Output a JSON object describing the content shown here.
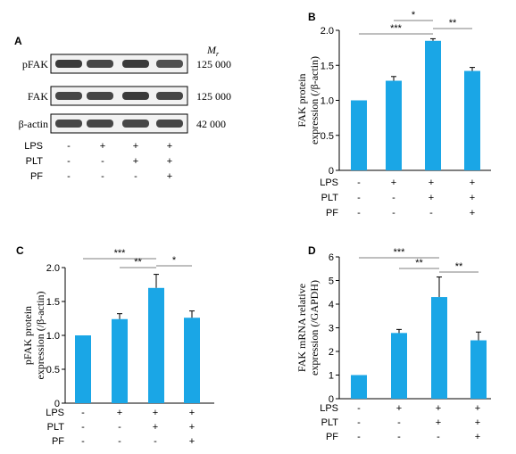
{
  "figure": {
    "panel_labels": [
      "A",
      "B",
      "C",
      "D"
    ],
    "condition_rows": [
      {
        "label": "LPS",
        "signs": [
          "-",
          "+",
          "+",
          "+"
        ]
      },
      {
        "label": "PLT",
        "signs": [
          "-",
          "-",
          "+",
          "+"
        ]
      },
      {
        "label": "PF",
        "signs": [
          "-",
          "-",
          "-",
          "+"
        ]
      }
    ]
  },
  "blot": {
    "mr_header": "M",
    "mr_subscript": "r",
    "rows": [
      {
        "label": "pFAK",
        "mr": "125 000",
        "intensity": [
          0.85,
          0.8,
          0.85,
          0.75
        ]
      },
      {
        "label": "FAK",
        "mr": "125 000",
        "intensity": [
          0.8,
          0.8,
          0.85,
          0.8
        ]
      },
      {
        "label": "β-actin",
        "mr": "42 000",
        "intensity": [
          0.8,
          0.8,
          0.8,
          0.8
        ]
      }
    ]
  },
  "colors": {
    "bar": "#1aa6e6",
    "axis": "#000000",
    "sig": "#555555",
    "band": "#1a1a1a"
  },
  "chart_data": [
    {
      "panel": "B",
      "type": "bar",
      "categories": [
        "1",
        "2",
        "3",
        "4"
      ],
      "values": [
        1.0,
        1.28,
        1.85,
        1.42
      ],
      "errors": [
        0.0,
        0.06,
        0.03,
        0.05
      ],
      "ylabel_line1": "FAK protein",
      "ylabel_line2": "expression (/β-actin)",
      "ylim": [
        0,
        2.0
      ],
      "ticks": [
        0,
        0.5,
        1.0,
        1.5,
        2.0
      ],
      "tick_labels": [
        "0",
        "0.5",
        "1.0",
        "1.5",
        "2.0"
      ],
      "significance": [
        {
          "from": 0,
          "to": 2,
          "label": "***"
        },
        {
          "from": 1,
          "to": 2,
          "label": "*"
        },
        {
          "from": 2,
          "to": 3,
          "label": "**"
        }
      ]
    },
    {
      "panel": "C",
      "type": "bar",
      "categories": [
        "1",
        "2",
        "3",
        "4"
      ],
      "values": [
        1.0,
        1.24,
        1.7,
        1.26
      ],
      "errors": [
        0.0,
        0.08,
        0.2,
        0.1
      ],
      "ylabel_line1": "pFAK protein",
      "ylabel_line2": "expression (/β-actin)",
      "ylim": [
        0,
        2.0
      ],
      "ticks": [
        0,
        0.5,
        1.0,
        1.5,
        2.0
      ],
      "tick_labels": [
        "0",
        "0.5",
        "1.0",
        "1.5",
        "2.0"
      ],
      "significance": [
        {
          "from": 0,
          "to": 2,
          "label": "***"
        },
        {
          "from": 1,
          "to": 2,
          "label": "**"
        },
        {
          "from": 2,
          "to": 3,
          "label": "*"
        }
      ]
    },
    {
      "panel": "D",
      "type": "bar",
      "categories": [
        "1",
        "2",
        "3",
        "4"
      ],
      "values": [
        1.0,
        2.78,
        4.3,
        2.47
      ],
      "errors": [
        0.0,
        0.15,
        0.85,
        0.35
      ],
      "ylabel_line1": "FAK mRNA relative",
      "ylabel_line2": "expression (/GAPDH)",
      "ylim": [
        0,
        6
      ],
      "ticks": [
        0,
        1,
        2,
        3,
        4,
        5,
        6
      ],
      "tick_labels": [
        "0",
        "1",
        "2",
        "3",
        "4",
        "5",
        "6"
      ],
      "significance": [
        {
          "from": 0,
          "to": 2,
          "label": "***"
        },
        {
          "from": 1,
          "to": 2,
          "label": "**"
        },
        {
          "from": 2,
          "to": 3,
          "label": "**"
        }
      ]
    }
  ]
}
